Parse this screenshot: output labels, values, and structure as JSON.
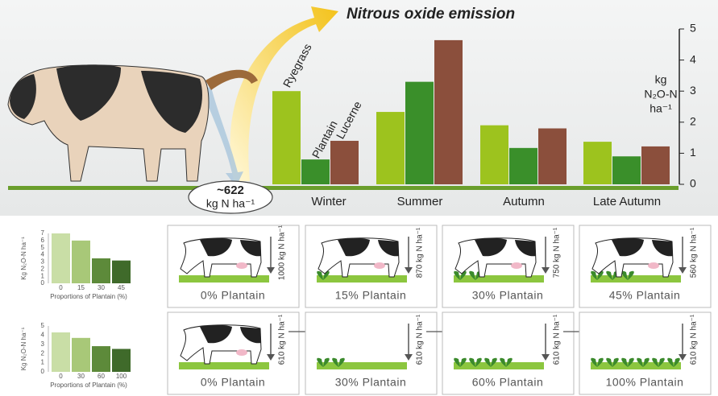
{
  "title": "Nitrous oxide emission",
  "excretion": {
    "value": "~622",
    "unit": "kg N ha⁻¹"
  },
  "chart_data": [
    {
      "type": "bar",
      "categories": [
        "Winter",
        "Summer",
        "Autumn",
        "Late Autumn"
      ],
      "series": [
        {
          "name": "Ryegrass",
          "color": "#9dc31e",
          "values": [
            3.0,
            2.33,
            1.9,
            1.37
          ]
        },
        {
          "name": "Plantain",
          "color": "#3a8f2a",
          "values": [
            0.8,
            3.3,
            1.17,
            0.9
          ]
        },
        {
          "name": "Lucerne",
          "color": "#8b4f3c",
          "values": [
            1.4,
            4.64,
            1.8,
            1.22
          ]
        }
      ],
      "y_label": [
        "kg",
        "N₂O-N",
        "ha⁻¹"
      ],
      "ylim": [
        0,
        5
      ],
      "yticks": [
        0,
        1,
        2,
        3,
        4,
        5
      ]
    },
    {
      "type": "bar",
      "categories": [
        "0",
        "15",
        "30",
        "45"
      ],
      "values": [
        7,
        6,
        3.5,
        3.2
      ],
      "colors": [
        "#c9dea6",
        "#a8c878",
        "#5d8a3a",
        "#3f6a2a"
      ],
      "x_label": "Proportions of Plantain (%)",
      "y_label": "Kg N₂O-N ha⁻¹",
      "ylim": [
        0,
        7
      ],
      "yticks": [
        0,
        1,
        2,
        3,
        4,
        5,
        6,
        7
      ]
    },
    {
      "type": "bar",
      "categories": [
        "0",
        "30",
        "60",
        "100"
      ],
      "values": [
        4.3,
        3.7,
        2.8,
        2.5
      ],
      "colors": [
        "#c9dea6",
        "#a8c878",
        "#5d8a3a",
        "#3f6a2a"
      ],
      "x_label": "Proportions of Plantain (%)",
      "y_label": "Kg N₂O-N ha⁻¹",
      "ylim": [
        0,
        5
      ],
      "yticks": [
        0,
        1,
        2,
        3,
        4,
        5
      ]
    }
  ],
  "panels": [
    [
      {
        "label": "0% Plantain",
        "n": "1000 kg N ha⁻¹"
      },
      {
        "label": "15% Plantain",
        "n": "870 kg N ha⁻¹"
      },
      {
        "label": "30% Plantain",
        "n": "750 kg N ha⁻¹"
      },
      {
        "label": "45% Plantain",
        "n": "560 kg N ha⁻¹"
      }
    ],
    [
      {
        "label": "0% Plantain",
        "n": "610 kg N ha⁻¹"
      },
      {
        "label": "30% Plantain",
        "n": "610 kg N ha⁻¹"
      },
      {
        "label": "60% Plantain",
        "n": "610 kg N ha⁻¹"
      },
      {
        "label": "100% Plantain",
        "n": "610 kg N ha⁻¹"
      }
    ]
  ]
}
